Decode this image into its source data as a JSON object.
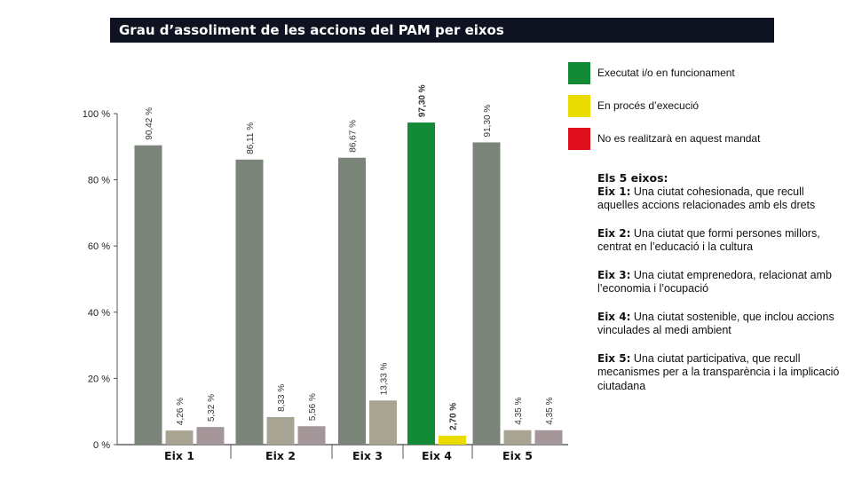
{
  "title": "Grau d’assoliment de les accions del PAM per eixos",
  "legend": [
    {
      "label": "Executat i/o en funcionament",
      "color": "#138a36"
    },
    {
      "label": "En procés d’execució",
      "color": "#e8dc00"
    },
    {
      "label": "No es realitzarà en aquest mandat",
      "color": "#e0101e"
    }
  ],
  "eixos_heading": "Els 5 eixos:",
  "eixos": [
    {
      "name": "Eix 1:",
      "text": "Una ciutat cohesionada, que recull aquelles accions relacionades amb els drets"
    },
    {
      "name": "Eix 2:",
      "text": "Una ciutat que formi persones millors, centrat en l’educació i la cultura"
    },
    {
      "name": "Eix 3:",
      "text": "Una ciutat emprenedora, relacionat amb l’economia i l’ocupació"
    },
    {
      "name": "Eix 4:",
      "text": "Una ciutat sostenible, que inclou accions vinculades al medi ambient"
    },
    {
      "name": "Eix 5:",
      "text": "Una ciutat participativa, que recull mecanismes per a la transparència i la implicació ciutadana"
    }
  ],
  "chart_data": {
    "type": "bar",
    "categories": [
      "Eix 1",
      "Eix 2",
      "Eix 3",
      "Eix 4",
      "Eix 5"
    ],
    "ylim": [
      0,
      100
    ],
    "yticks": [
      0,
      20,
      40,
      60,
      80,
      100
    ],
    "ytick_labels": [
      "0 %",
      "20 %",
      "40 %",
      "60 %",
      "80 %",
      "100 %"
    ],
    "grid": false,
    "bars": [
      {
        "category": "Eix 1",
        "value": 90.42,
        "label": "90,42 %",
        "color": "#7a8478",
        "bold": false
      },
      {
        "category": "Eix 1",
        "value": 4.26,
        "label": "4,26 %",
        "color": "#a8a494",
        "bold": false
      },
      {
        "category": "Eix 1",
        "value": 5.32,
        "label": "5,32 %",
        "color": "#a5969a",
        "bold": false
      },
      {
        "category": "Eix 2",
        "value": 86.11,
        "label": "86,11 %",
        "color": "#7a8478",
        "bold": false
      },
      {
        "category": "Eix 2",
        "value": 8.33,
        "label": "8,33 %",
        "color": "#a8a494",
        "bold": false
      },
      {
        "category": "Eix 2",
        "value": 5.56,
        "label": "5,56 %",
        "color": "#a5969a",
        "bold": false
      },
      {
        "category": "Eix 3",
        "value": 86.67,
        "label": "86,67 %",
        "color": "#7a8478",
        "bold": false
      },
      {
        "category": "Eix 3",
        "value": 13.33,
        "label": "13,33 %",
        "color": "#a8a494",
        "bold": false
      },
      {
        "category": "Eix 4",
        "value": 97.3,
        "label": "97,30 %",
        "color": "#138a36",
        "bold": true
      },
      {
        "category": "Eix 4",
        "value": 2.7,
        "label": "2,70 %",
        "color": "#e8dc00",
        "bold": true
      },
      {
        "category": "Eix 5",
        "value": 91.3,
        "label": "91,30 %",
        "color": "#7a8478",
        "bold": false
      },
      {
        "category": "Eix 5",
        "value": 4.35,
        "label": "4,35 %",
        "color": "#a8a494",
        "bold": false
      },
      {
        "category": "Eix 5",
        "value": 4.35,
        "label": "4,35 %",
        "color": "#a5969a",
        "bold": false
      }
    ]
  }
}
